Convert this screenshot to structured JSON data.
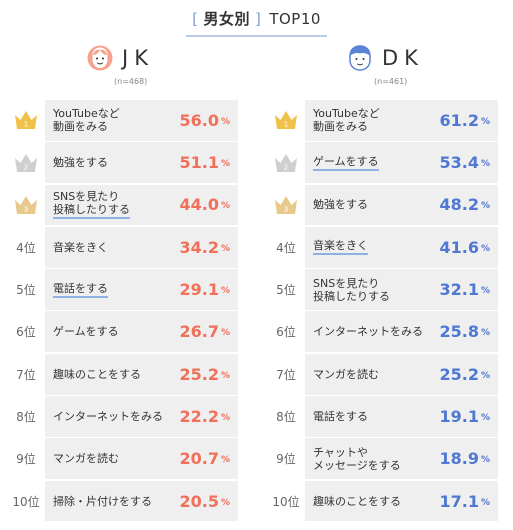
{
  "header": {
    "bracket_left": "[",
    "title": "男女別",
    "bracket_right": "]",
    "subtitle": "TOP10"
  },
  "colors": {
    "jk_accent": "#f0705a",
    "dk_accent": "#4e78d2",
    "gold": "#f0c24b",
    "silver": "#cfcfcf",
    "bronze": "#e9c98b",
    "cell_bg": "#efefef",
    "underline": "#8fb1e6"
  },
  "chart_data": [
    {
      "type": "table",
      "group": "JK",
      "sample": "(n=468)",
      "ranks": [
        "",
        "",
        "",
        "4位",
        "5位",
        "6位",
        "7位",
        "8位",
        "9位",
        "10位"
      ],
      "categories": [
        "YouTubeなど\n動画をみる",
        "勉強をする",
        "SNSを見たり\n投稿したりする",
        "音楽をきく",
        "電話をする",
        "ゲームをする",
        "趣味のことをする",
        "インターネットをみる",
        "マンガを読む",
        "掃除・片付けをする"
      ],
      "values": [
        56.0,
        51.1,
        44.0,
        34.2,
        29.1,
        26.7,
        25.2,
        22.2,
        20.7,
        20.5
      ],
      "unit": "%",
      "underlined": [
        false,
        false,
        true,
        false,
        true,
        false,
        false,
        false,
        false,
        false
      ]
    },
    {
      "type": "table",
      "group": "DK",
      "sample": "(n=461)",
      "ranks": [
        "",
        "",
        "",
        "4位",
        "5位",
        "6位",
        "7位",
        "8位",
        "9位",
        "10位"
      ],
      "categories": [
        "YouTubeなど\n動画をみる",
        "ゲームをする",
        "勉強をする",
        "音楽をきく",
        "SNSを見たり\n投稿したりする",
        "インターネットをみる",
        "マンガを読む",
        "電話をする",
        "チャットや\nメッセージをする",
        "趣味のことをする"
      ],
      "values": [
        61.2,
        53.4,
        48.2,
        41.6,
        32.1,
        25.8,
        25.2,
        19.1,
        18.9,
        17.1
      ],
      "unit": "%",
      "underlined": [
        false,
        true,
        false,
        true,
        false,
        false,
        false,
        false,
        false,
        false
      ]
    }
  ],
  "crown_numbers": [
    "1",
    "2",
    "3"
  ]
}
